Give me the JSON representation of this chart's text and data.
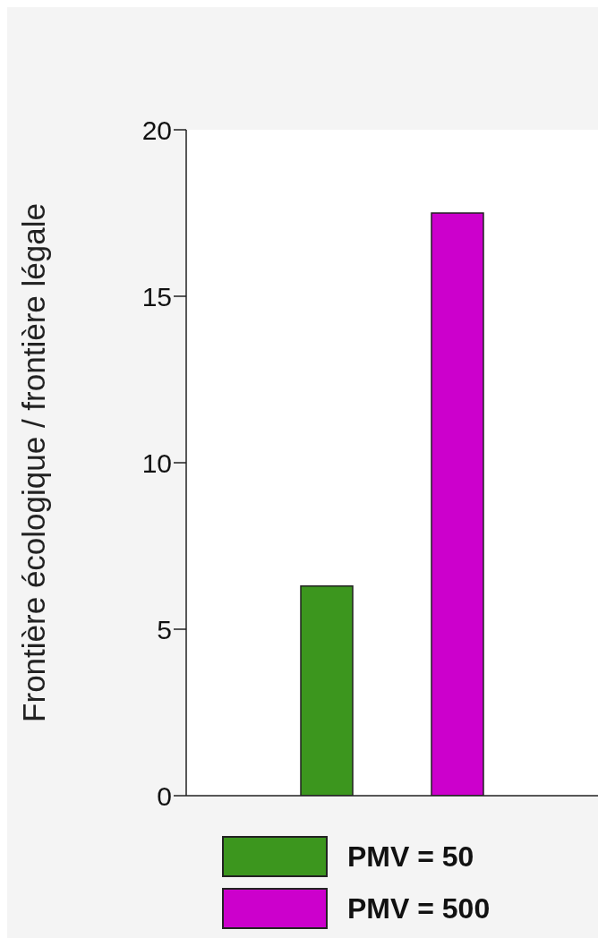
{
  "chart_data": {
    "type": "bar",
    "ylabel": "Frontière écologique / frontière légale",
    "categories": [
      null
    ],
    "series": [
      {
        "name": "PMV = 50",
        "color": "#3c961e",
        "values": [
          6.3
        ]
      },
      {
        "name": "PMV = 500",
        "color": "#cc00cc",
        "values": [
          17.5
        ]
      }
    ],
    "ylim": [
      0,
      20
    ],
    "yticks": [
      0,
      5,
      10,
      15,
      20
    ],
    "grid": false,
    "legend": "bottom"
  }
}
